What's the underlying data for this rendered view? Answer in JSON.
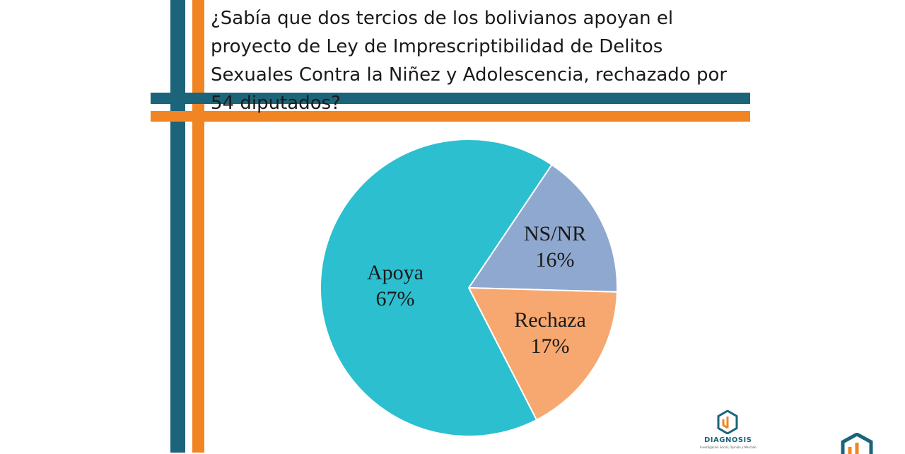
{
  "colors": {
    "teal_stripe": "#1b6479",
    "orange_stripe": "#f18523",
    "apoya": "#2bbfd0",
    "ns_nr": "#8fa8cf",
    "rechaza": "#f7a870",
    "logo_orange": "#f18523",
    "logo_teal": "#1b6479"
  },
  "title": "¿Sabía que dos tercios de los bolivianos apoyan el proyecto de Ley de Imprescriptibilidad de Delitos Sexuales Contra la Niñez y Adolescencia, rechazado por 54 diputados?",
  "chart_data": {
    "type": "pie",
    "title": "",
    "slices": [
      {
        "label": "Apoya",
        "value": 67,
        "display": "67%",
        "color": "#2bbfd0"
      },
      {
        "label": "NS/NR",
        "value": 16,
        "display": "16%",
        "color": "#8fa8cf"
      },
      {
        "label": "Rechaza",
        "value": 17,
        "display": "17%",
        "color": "#f7a870"
      }
    ]
  },
  "logo": {
    "name": "DIAGNOSIS",
    "tagline": "Investigación Social, Opinión y Mercado",
    "icon": "diagnosis-logo-icon"
  }
}
